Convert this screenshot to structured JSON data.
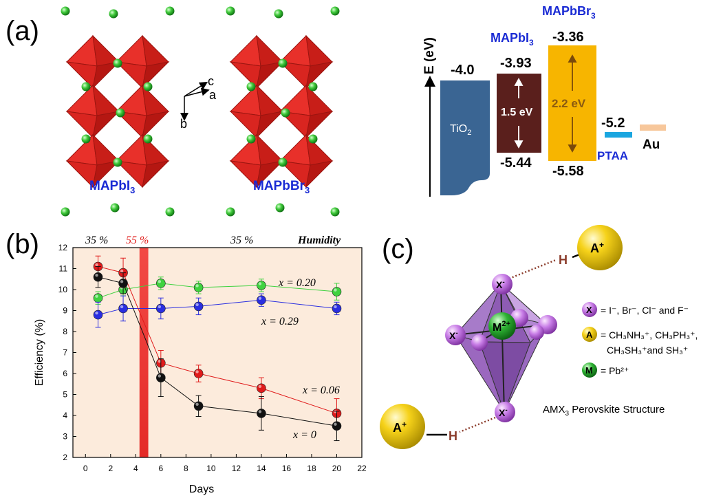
{
  "panel_a": {
    "label": "(a)",
    "structure_1_name": "MAPbI",
    "structure_1_sub": "3",
    "structure_2_name": "MAPbBr",
    "structure_2_sub": "3",
    "axis_c": "c",
    "axis_a": "a",
    "axis_b": "b"
  },
  "energy": {
    "axis_label": "E (eV)",
    "tio2_label": "TiO",
    "tio2_sub": "2",
    "tio2_value": "-4.0",
    "mapbi_name": "MAPbI",
    "mapbi_sub": "3",
    "mapbi_top": "-3.93",
    "mapbi_bottom": "-5.44",
    "mapbi_gap": "1.5 eV",
    "mapbbr_name": "MAPbBr",
    "mapbbr_sub": "3",
    "mapbbr_top": "-3.36",
    "mapbbr_bottom": "-5.58",
    "mapbbr_gap": "2.2 eV",
    "ptaa_label": "PTAA",
    "ptaa_value": "-5.2",
    "au_label": "Au",
    "colors": {
      "tio2": "#3a6593",
      "mapbi": "#5a1f1c",
      "mapbbr": "#f7b500",
      "ptaa": "#1aa6e0",
      "au": "#f7c79b",
      "name": "#1a2bd4"
    }
  },
  "panel_b": {
    "label": "(b)",
    "humidity_title": "Humidity",
    "humidity_1": "35 %",
    "humidity_2": "55 %",
    "humidity_3": "35 %",
    "series_labels": {
      "x020": "x = 0.20",
      "x029": "x = 0.29",
      "x006": "x = 0.06",
      "x0": "x = 0"
    }
  },
  "chart_data": {
    "type": "line",
    "xlabel": "Days",
    "ylabel": "Efficiency   (%)",
    "xlim": [
      -1,
      22
    ],
    "ylim": [
      2,
      12
    ],
    "xticks": [
      0,
      2,
      4,
      6,
      8,
      10,
      12,
      14,
      16,
      18,
      20,
      22
    ],
    "yticks": [
      2,
      3,
      4,
      5,
      6,
      7,
      8,
      9,
      10,
      11,
      12
    ],
    "highlight_band": [
      4.3,
      5.0
    ],
    "series": [
      {
        "name": "x = 0.20",
        "color": "#3fd23f",
        "x": [
          1,
          3,
          6,
          9,
          14,
          20
        ],
        "values": [
          9.6,
          10.0,
          10.3,
          10.1,
          10.2,
          9.9
        ],
        "err": [
          0.3,
          0.3,
          0.3,
          0.3,
          0.3,
          0.4
        ]
      },
      {
        "name": "x = 0.29",
        "color": "#2a2ee0",
        "x": [
          1,
          3,
          6,
          9,
          14,
          20
        ],
        "values": [
          8.8,
          9.1,
          9.1,
          9.2,
          9.5,
          9.1
        ],
        "err": [
          0.6,
          0.6,
          0.5,
          0.4,
          0.3,
          0.3
        ]
      },
      {
        "name": "x = 0.06",
        "color": "#e01b1b",
        "x": [
          1,
          3,
          6,
          9,
          14,
          20
        ],
        "values": [
          11.1,
          10.8,
          6.5,
          6.0,
          5.3,
          4.1
        ],
        "err": [
          0.5,
          0.7,
          0.6,
          0.4,
          0.5,
          0.7
        ]
      },
      {
        "name": "x = 0",
        "color": "#111111",
        "x": [
          1,
          3,
          6,
          9,
          14,
          20
        ],
        "values": [
          10.6,
          10.3,
          5.8,
          4.45,
          4.1,
          3.5
        ],
        "err": [
          0.5,
          0.5,
          0.9,
          0.5,
          0.8,
          0.7
        ]
      }
    ]
  },
  "panel_c": {
    "label": "(c)",
    "cation": "A",
    "cation_charge": "+",
    "hydrogen": "H",
    "anion": "X",
    "anion_charge": "-",
    "metal": "M",
    "metal_charge": "2+",
    "legend_x": "= I⁻, Br⁻, Cl⁻ and F⁻",
    "legend_a_line1": "= CH₃NH₃⁺, CH₃PH₃⁺,",
    "legend_a_line2": "CH₃SH₃⁺and SH₃⁺",
    "legend_m": "= Pb²⁺",
    "caption_pre": "AMX",
    "caption_sub": "3",
    "caption_post": " Perovskite Structure"
  }
}
